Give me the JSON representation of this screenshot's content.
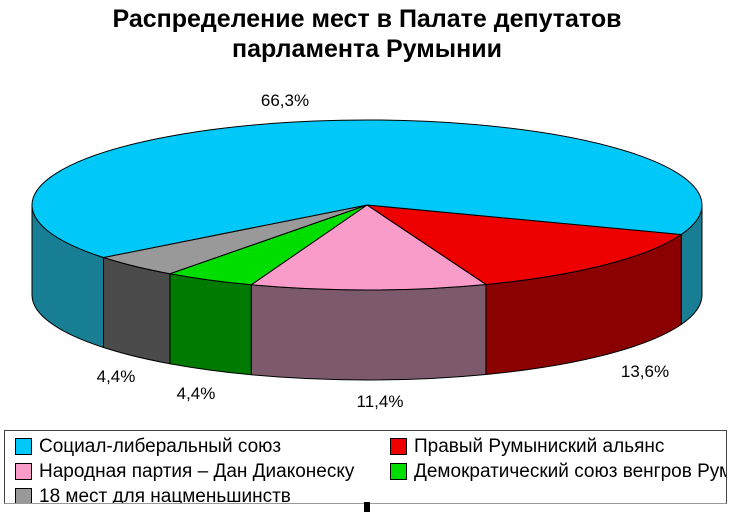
{
  "title": {
    "line1": "Распределение мест в Палате депутатов",
    "line2": "парламента Румынии"
  },
  "chart_data": {
    "type": "pie",
    "style": "3d",
    "title": "Распределение мест в Палате депутатов парламента Румынии",
    "value_unit": "percent",
    "slices": [
      {
        "label": "Социал-либеральный союз",
        "value": 66.3,
        "pct_label": "66,3%",
        "color": "#00C8F8",
        "side_color": "#177E94"
      },
      {
        "label": "Правый Румыниский альянс",
        "value": 13.6,
        "pct_label": "13,6%",
        "color": "#EE0000",
        "side_color": "#8B0000"
      },
      {
        "label": "Народная партия – Дан Диаконеску",
        "value": 11.4,
        "pct_label": "11,4%",
        "color": "#F99CCA",
        "side_color": "#7D5A6B"
      },
      {
        "label": "Демократический союз венгров Румынии",
        "value": 4.4,
        "pct_label": "4,4%",
        "color": "#00DE00",
        "side_color": "#007A00"
      },
      {
        "label": "18 мест для нацменьшинств",
        "value": 4.4,
        "pct_label": "4,4%",
        "color": "#999999",
        "side_color": "#4B4B4B"
      }
    ],
    "legend": {
      "position": "bottom",
      "columns": [
        [
          0,
          2,
          4
        ],
        [
          1,
          3
        ]
      ]
    }
  }
}
